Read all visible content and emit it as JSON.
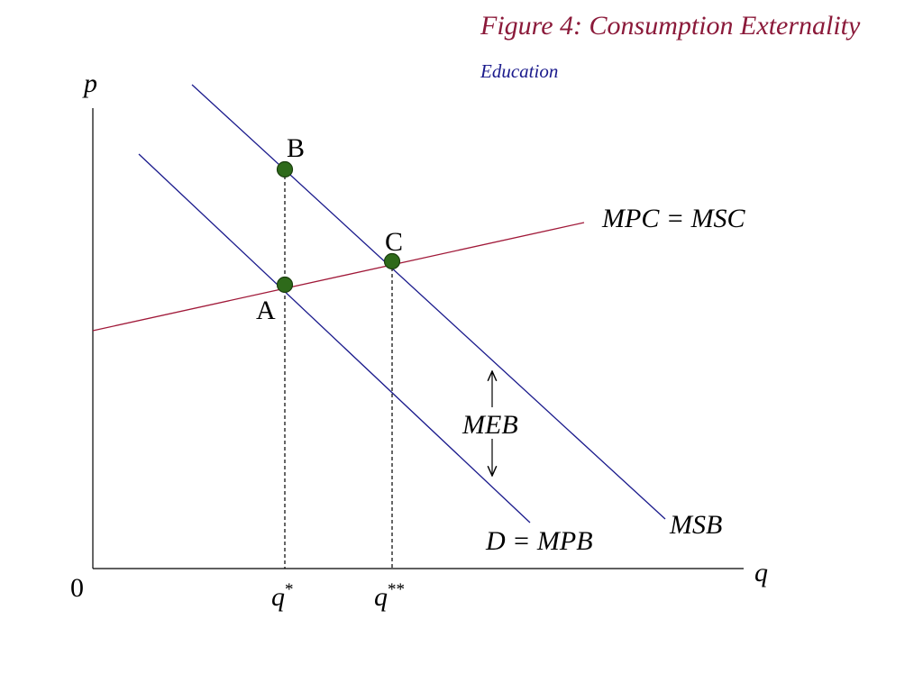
{
  "figure": {
    "title": "Figure 4: Consumption Externality",
    "subtitle": "Education"
  },
  "axes": {
    "y_label": "p",
    "x_label": "q",
    "origin_label": "0"
  },
  "curves": {
    "supply_label": "MPC = MSC",
    "demand_label": "D = MPB",
    "social_benefit_label": "MSB",
    "external_benefit_label": "MEB"
  },
  "points": {
    "a_label": "A",
    "b_label": "B",
    "c_label": "C"
  },
  "ticks": {
    "q_star_base": "q",
    "q_star_sup": "*",
    "q_double_star_base": "q",
    "q_double_star_sup": "**"
  },
  "colors": {
    "title": "#8b1a3a",
    "subtitle": "#1a1a8c",
    "demand_lines": "#1a1a8c",
    "supply_line": "#a01838",
    "points": "#2e6a1a"
  }
}
